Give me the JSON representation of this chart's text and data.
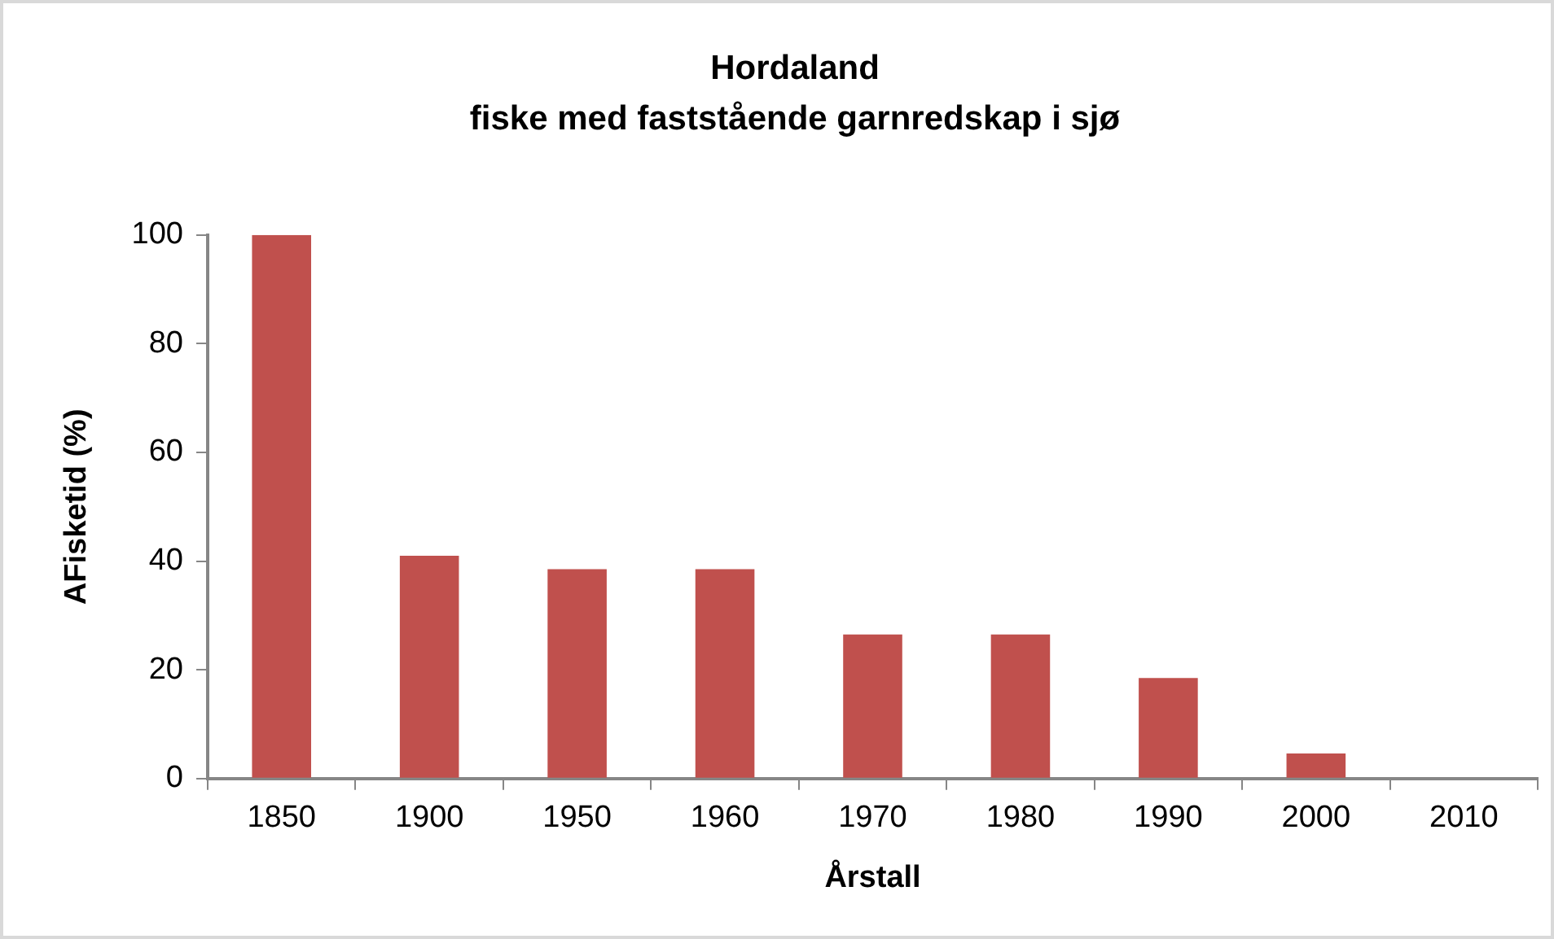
{
  "chart_data": {
    "type": "bar",
    "title": "Hordaland",
    "subtitle": "fiske med faststående garnredskap i sjø",
    "xlabel": "Årstall",
    "ylabel": "AFisketid (%)",
    "categories": [
      "1850",
      "1900",
      "1950",
      "1960",
      "1970",
      "1980",
      "1990",
      "2000",
      "2010"
    ],
    "values": [
      100,
      41,
      38.5,
      38.5,
      26.5,
      26.5,
      18.5,
      4.6,
      0
    ],
    "color": "#c0504d",
    "ylim": [
      0,
      100
    ],
    "yticks": [
      0,
      20,
      40,
      60,
      80,
      100
    ]
  }
}
